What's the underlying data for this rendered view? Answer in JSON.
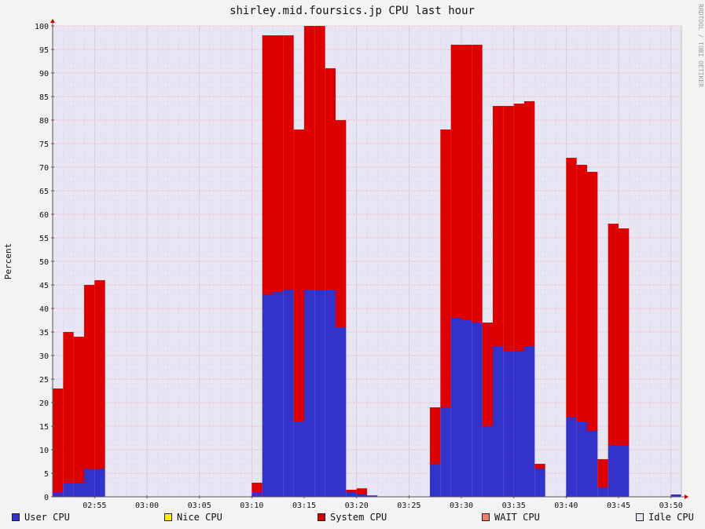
{
  "chart_data": {
    "type": "area",
    "title": "shirley.mid.foursics.jp CPU last hour",
    "ylabel": "Percent",
    "watermark": "RRDTOOL / TOBI OETIKER",
    "ylim": [
      0,
      100
    ],
    "y_ticks": [
      "0",
      "5",
      "10",
      "15",
      "20",
      "25",
      "30",
      "35",
      "40",
      "45",
      "50",
      "55",
      "60",
      "65",
      "70",
      "75",
      "80",
      "85",
      "90",
      "95",
      "100"
    ],
    "x_range": [
      "02:51",
      "03:51"
    ],
    "x_ticks": [
      "02:55",
      "03:00",
      "03:05",
      "03:10",
      "03:15",
      "03:20",
      "03:25",
      "03:30",
      "03:35",
      "03:40",
      "03:45",
      "03:50"
    ],
    "grid": true,
    "stacked": true,
    "colors": {
      "background": "#e8e6f5",
      "grid": "#e7a3a3",
      "frame": "#c2c2c2",
      "user": "#3333cc",
      "system": "#dd0000"
    },
    "series": [
      {
        "name": "User CPU",
        "color": "#3333cc",
        "points": [
          [
            "02:51",
            1
          ],
          [
            "02:52",
            3
          ],
          [
            "02:53",
            3
          ],
          [
            "02:54",
            6
          ],
          [
            "02:55",
            6
          ],
          [
            "02:56",
            0
          ],
          [
            "03:10",
            1
          ],
          [
            "03:11",
            43
          ],
          [
            "03:12",
            43.5
          ],
          [
            "03:13",
            44
          ],
          [
            "03:14",
            16
          ],
          [
            "03:15",
            44
          ],
          [
            "03:16",
            44
          ],
          [
            "03:17",
            44
          ],
          [
            "03:18",
            36
          ],
          [
            "03:19",
            1
          ],
          [
            "03:20",
            0.5
          ],
          [
            "03:21",
            0.3
          ],
          [
            "03:22",
            0
          ],
          [
            "03:27",
            7
          ],
          [
            "03:28",
            19
          ],
          [
            "03:29",
            38
          ],
          [
            "03:30",
            37.5
          ],
          [
            "03:31",
            37
          ],
          [
            "03:32",
            15
          ],
          [
            "03:33",
            32
          ],
          [
            "03:34",
            31
          ],
          [
            "03:35",
            31
          ],
          [
            "03:36",
            32
          ],
          [
            "03:37",
            6
          ],
          [
            "03:38",
            0
          ],
          [
            "03:40",
            17
          ],
          [
            "03:41",
            16
          ],
          [
            "03:42",
            14
          ],
          [
            "03:43",
            2
          ],
          [
            "03:44",
            11
          ],
          [
            "03:45",
            11
          ],
          [
            "03:46",
            0
          ],
          [
            "03:50",
            0.5
          ],
          [
            "03:51",
            0
          ]
        ]
      },
      {
        "name": "Nice CPU",
        "color": "#ffee00",
        "points": []
      },
      {
        "name": "System CPU",
        "color": "#dd0000",
        "points": [
          [
            "02:51",
            22
          ],
          [
            "02:52",
            32
          ],
          [
            "02:53",
            31
          ],
          [
            "02:54",
            39
          ],
          [
            "02:55",
            40
          ],
          [
            "02:56",
            0
          ],
          [
            "03:10",
            2
          ],
          [
            "03:11",
            55
          ],
          [
            "03:12",
            54.5
          ],
          [
            "03:13",
            54
          ],
          [
            "03:14",
            62
          ],
          [
            "03:15",
            56
          ],
          [
            "03:16",
            56
          ],
          [
            "03:17",
            47
          ],
          [
            "03:18",
            44
          ],
          [
            "03:19",
            0.5
          ],
          [
            "03:20",
            1.3
          ],
          [
            "03:21",
            0
          ],
          [
            "03:22",
            0
          ],
          [
            "03:27",
            12
          ],
          [
            "03:28",
            59
          ],
          [
            "03:29",
            58
          ],
          [
            "03:30",
            58.5
          ],
          [
            "03:31",
            59
          ],
          [
            "03:32",
            22
          ],
          [
            "03:33",
            51
          ],
          [
            "03:34",
            52
          ],
          [
            "03:35",
            52.5
          ],
          [
            "03:36",
            52
          ],
          [
            "03:37",
            1
          ],
          [
            "03:38",
            0
          ],
          [
            "03:40",
            55
          ],
          [
            "03:41",
            54.5
          ],
          [
            "03:42",
            55
          ],
          [
            "03:43",
            6
          ],
          [
            "03:44",
            47
          ],
          [
            "03:45",
            46
          ],
          [
            "03:46",
            0
          ],
          [
            "03:50",
            0
          ],
          [
            "03:51",
            0
          ]
        ]
      },
      {
        "name": "WAIT CPU",
        "color": "#f08070",
        "points": []
      },
      {
        "name": "Idle CPU",
        "color": "#e8e6f5",
        "points": []
      }
    ]
  }
}
